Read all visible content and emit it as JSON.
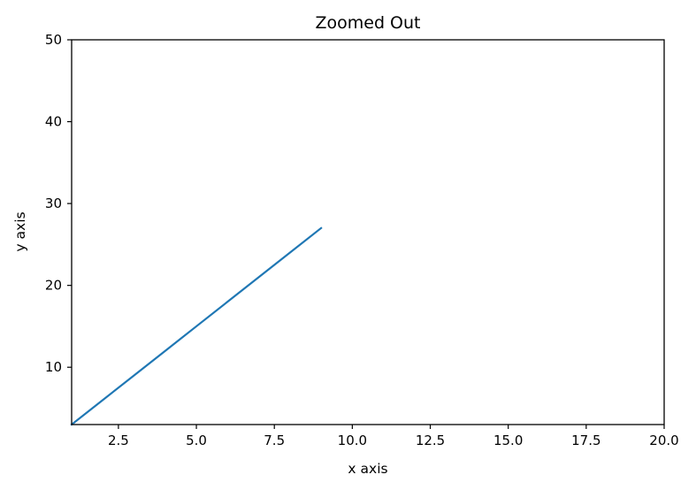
{
  "chart_data": {
    "type": "line",
    "title": "Zoomed Out",
    "xlabel": "x axis",
    "ylabel": "y axis",
    "xlim": [
      1,
      20
    ],
    "ylim": [
      3,
      50
    ],
    "xticks": [
      2.5,
      5.0,
      7.5,
      10.0,
      12.5,
      15.0,
      17.5,
      20.0
    ],
    "xtick_labels": [
      "2.5",
      "5.0",
      "7.5",
      "10.0",
      "12.5",
      "15.0",
      "17.5",
      "20.0"
    ],
    "yticks": [
      10,
      20,
      30,
      40,
      50
    ],
    "ytick_labels": [
      "10",
      "20",
      "30",
      "40",
      "50"
    ],
    "grid": false,
    "series": [
      {
        "x": [
          1,
          2,
          3,
          4,
          5,
          6,
          7,
          8,
          9
        ],
        "y": [
          3,
          6,
          9,
          12,
          15,
          18,
          21,
          24,
          27
        ],
        "color": "#1f77b4"
      }
    ]
  }
}
